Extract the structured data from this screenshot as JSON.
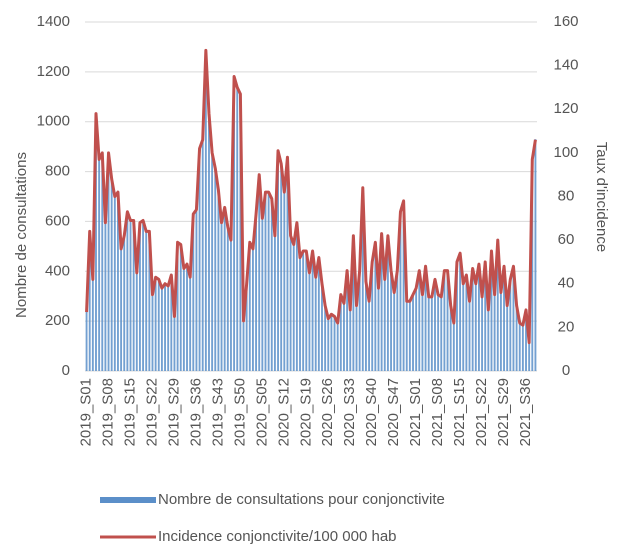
{
  "chart_data": {
    "type": "bar",
    "y_label": "Nombre de consultations",
    "y2_label": "Taux d'incidence",
    "categories": [
      "2019_S01",
      null,
      null,
      null,
      null,
      null,
      null,
      "2019_S08",
      null,
      null,
      null,
      null,
      null,
      null,
      "2019_S15",
      null,
      null,
      null,
      null,
      null,
      null,
      "2019_S22",
      null,
      null,
      null,
      null,
      null,
      null,
      "2019_S29",
      null,
      null,
      null,
      null,
      null,
      null,
      "2019_S36",
      null,
      null,
      null,
      null,
      null,
      null,
      "2019_S43",
      null,
      null,
      null,
      null,
      null,
      null,
      "2019_S50",
      null,
      null,
      null,
      null,
      null,
      null,
      "2020_S05",
      null,
      null,
      null,
      null,
      null,
      null,
      "2020_S12",
      null,
      null,
      null,
      null,
      null,
      null,
      "2020_S19",
      null,
      null,
      null,
      null,
      null,
      null,
      "2020_S26",
      null,
      null,
      null,
      null,
      null,
      null,
      "2020_S33",
      null,
      null,
      null,
      null,
      null,
      null,
      "2020_S40",
      null,
      null,
      null,
      null,
      null,
      null,
      "2020_S47",
      null,
      null,
      null,
      null,
      null,
      null,
      "2021_S01",
      null,
      null,
      null,
      null,
      null,
      null,
      "2021_S08",
      null,
      null,
      null,
      null,
      null,
      null,
      "2021_S15",
      null,
      null,
      null,
      null,
      null,
      null,
      "2021_S22",
      null,
      null,
      null,
      null,
      null,
      null,
      "2021_S29",
      null,
      null,
      null,
      null,
      null,
      null,
      "2021_S36",
      null,
      null,
      null
    ],
    "series": [
      {
        "name": "Nombre de consultations pour conjonctivite",
        "type": "bar",
        "color": "#5b8fc9",
        "values": [
          240,
          560,
          370,
          1030,
          850,
          880,
          600,
          880,
          770,
          700,
          720,
          490,
          540,
          640,
          600,
          600,
          390,
          600,
          600,
          560,
          560,
          310,
          380,
          370,
          330,
          350,
          340,
          390,
          220,
          520,
          510,
          410,
          430,
          380,
          630,
          650,
          890,
          930,
          1290,
          1030,
          880,
          810,
          730,
          600,
          660,
          580,
          530,
          1180,
          1140,
          1110,
          200,
          350,
          520,
          490,
          630,
          790,
          610,
          720,
          720,
          690,
          540,
          880,
          830,
          720,
          860,
          540,
          510,
          600,
          460,
          480,
          480,
          390,
          480,
          380,
          460,
          350,
          260,
          210,
          230,
          220,
          190,
          310,
          270,
          400,
          250,
          540,
          260,
          400,
          740,
          360,
          280,
          440,
          520,
          330,
          550,
          370,
          540,
          400,
          320,
          400,
          640,
          680,
          280,
          280,
          310,
          330,
          400,
          310,
          420,
          300,
          300,
          370,
          310,
          300,
          400,
          400,
          260,
          190,
          440,
          470,
          350,
          390,
          280,
          410,
          350,
          430,
          300,
          440,
          250,
          480,
          310,
          530,
          320,
          420,
          260,
          370,
          420,
          260,
          190,
          180,
          250,
          110,
          850,
          930
        ]
      },
      {
        "name": "Incidence conjonctivite/100 000 hab",
        "type": "line",
        "axis": "y2",
        "color": "#c0504d",
        "values": [
          27,
          64,
          42,
          118,
          97,
          100,
          68,
          100,
          88,
          80,
          82,
          56,
          62,
          73,
          69,
          69,
          45,
          68,
          69,
          64,
          64,
          35,
          43,
          42,
          38,
          40,
          39,
          44,
          25,
          59,
          58,
          47,
          49,
          43,
          72,
          74,
          102,
          106,
          147,
          118,
          100,
          93,
          83,
          68,
          75,
          66,
          60,
          135,
          130,
          127,
          23,
          40,
          59,
          56,
          72,
          90,
          70,
          82,
          82,
          79,
          62,
          101,
          95,
          82,
          98,
          62,
          58,
          68,
          52,
          55,
          55,
          45,
          55,
          43,
          52,
          40,
          30,
          24,
          26,
          25,
          22,
          35,
          31,
          46,
          28,
          62,
          30,
          46,
          84,
          41,
          32,
          50,
          59,
          38,
          63,
          42,
          62,
          46,
          36,
          46,
          73,
          78,
          32,
          32,
          35,
          38,
          46,
          35,
          48,
          34,
          34,
          42,
          35,
          34,
          46,
          46,
          30,
          22,
          50,
          54,
          40,
          44,
          32,
          47,
          40,
          49,
          34,
          50,
          28,
          55,
          35,
          60,
          36,
          48,
          30,
          42,
          48,
          30,
          22,
          21,
          28,
          13,
          97,
          106
        ]
      }
    ],
    "ylim": [
      0,
      1400
    ],
    "yticks": [
      0,
      200,
      400,
      600,
      800,
      1000,
      1200,
      1400
    ],
    "y2lim": [
      0,
      160
    ],
    "y2ticks": [
      0,
      20,
      40,
      60,
      80,
      100,
      120,
      140,
      160
    ],
    "grid": true,
    "legend": "bottom"
  }
}
